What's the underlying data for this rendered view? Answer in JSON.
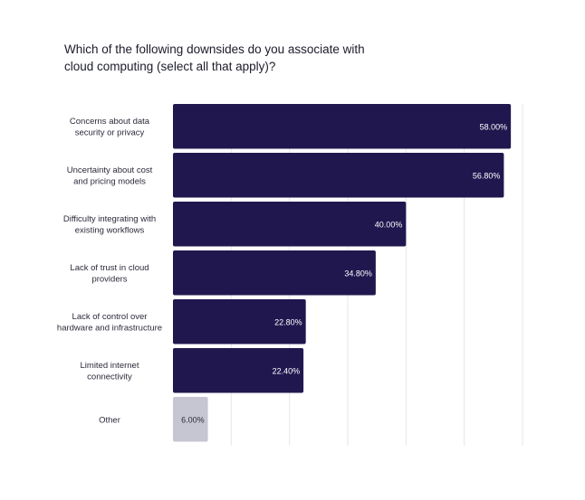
{
  "chart_data": {
    "type": "bar",
    "orientation": "horizontal",
    "title": "Which of the following downsides do you associate with cloud computing (select all that apply)?",
    "xlabel": "",
    "ylabel": "",
    "xlim": [
      0,
      60
    ],
    "grid": true,
    "unit": "%",
    "categories": [
      [
        "Concerns about data",
        "security or privacy"
      ],
      [
        "Uncertainty about cost",
        "and pricing models"
      ],
      [
        "Difficulty integrating with",
        "existing workflows"
      ],
      [
        "Lack of trust in cloud",
        "providers"
      ],
      [
        "Lack of control over",
        "hardware and infrastructure"
      ],
      [
        "Limited internet",
        "connectivity"
      ],
      [
        "Other"
      ]
    ],
    "values": [
      58.0,
      56.8,
      40.0,
      34.8,
      22.8,
      22.4,
      6.0
    ],
    "value_labels": [
      "58.00%",
      "56.80%",
      "40.00%",
      "34.80%",
      "22.80%",
      "22.40%",
      "6.00%"
    ],
    "colors": {
      "primary": "#21174f",
      "other": "#c6c6d2",
      "label_on_primary": "#ffffff",
      "label_on_other": "#2a2a3a",
      "grid": "#e6e6ec"
    }
  }
}
